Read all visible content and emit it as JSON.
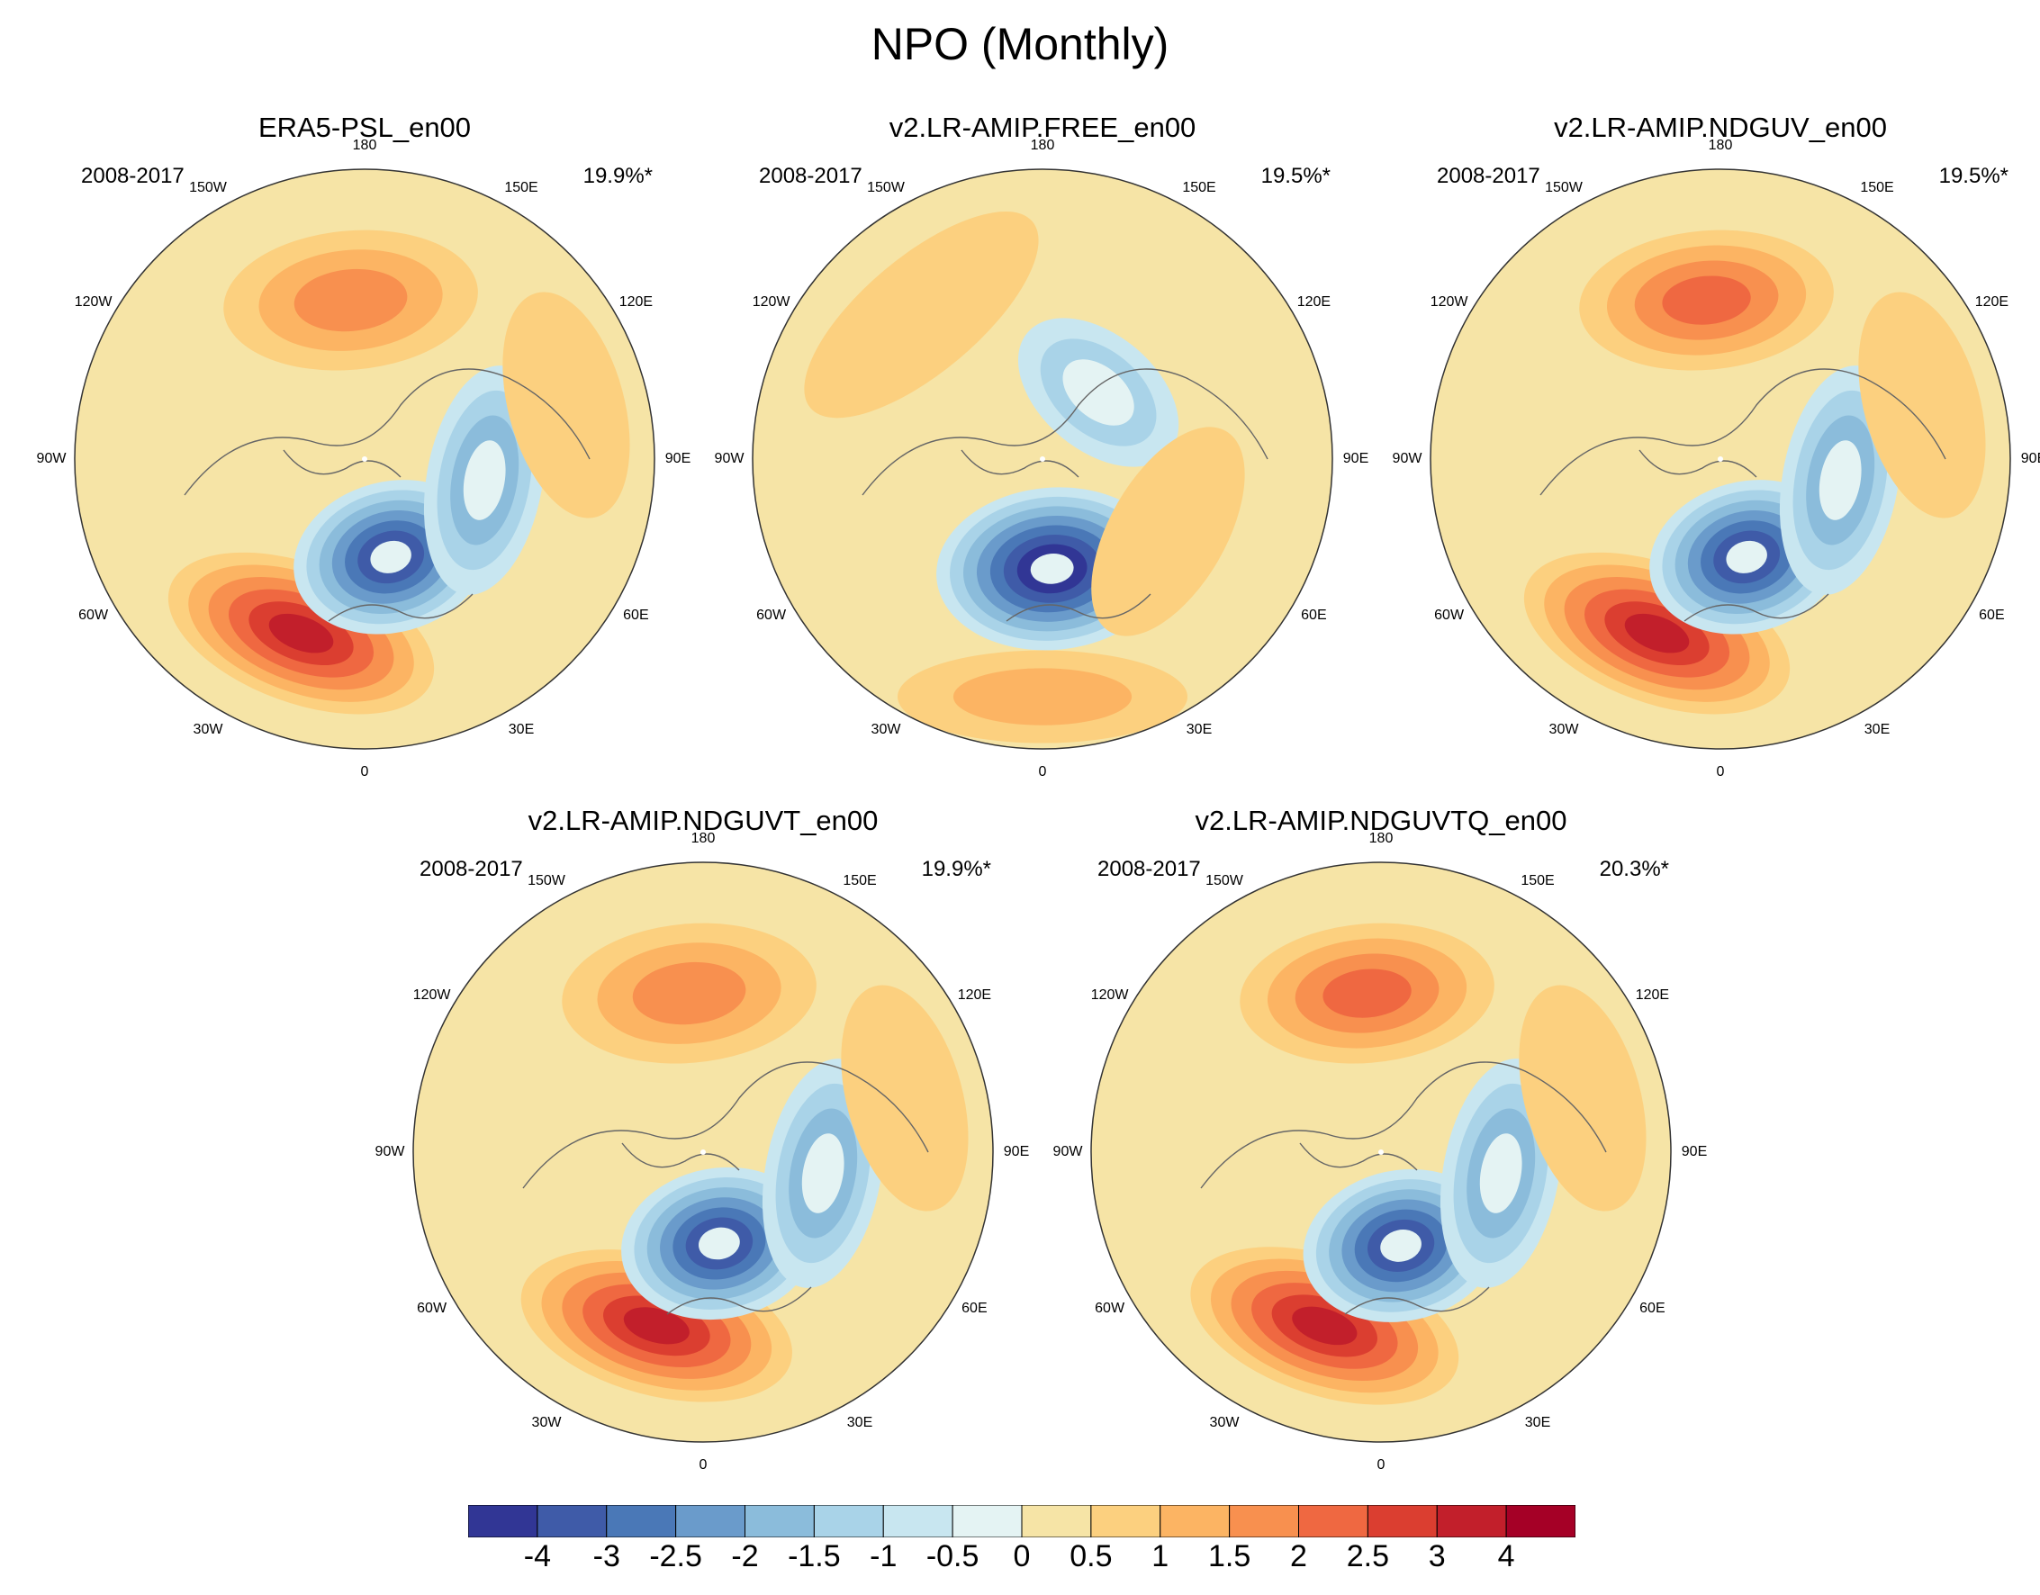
{
  "title": "NPO (Monthly)",
  "panels": [
    {
      "title": "ERA5-PSL_en00",
      "period": "2008-2017",
      "percent": "19.9%*",
      "features": [
        {
          "kind": "high",
          "ang": 200,
          "r": 0.64,
          "val": 3.6,
          "sa": 0.24,
          "sb": 0.12
        },
        {
          "kind": "low",
          "ang": 165,
          "r": 0.35,
          "val": -3.0,
          "sa": 0.17,
          "sb": 0.13
        },
        {
          "kind": "low",
          "ang": 100,
          "r": 0.42,
          "val": -1.5,
          "sa": 0.2,
          "sb": 0.1
        },
        {
          "kind": "high",
          "ang": -5,
          "r": 0.55,
          "val": 1.7,
          "sa": 0.22,
          "sb": 0.12
        },
        {
          "kind": "high",
          "ang": 75,
          "r": 0.72,
          "val": 0.7,
          "sa": 0.2,
          "sb": 0.1
        }
      ]
    },
    {
      "title": "v2.LR-AMIP.FREE_en00",
      "period": "2008-2017",
      "percent": "19.5%*",
      "features": [
        {
          "kind": "low",
          "ang": 175,
          "r": 0.38,
          "val": -4.2,
          "sa": 0.2,
          "sb": 0.14
        },
        {
          "kind": "low",
          "ang": 40,
          "r": 0.3,
          "val": -1.3,
          "sa": 0.16,
          "sb": 0.1
        },
        {
          "kind": "high",
          "ang": 180,
          "r": 0.82,
          "val": 1.0,
          "sa": 0.25,
          "sb": 0.08
        },
        {
          "kind": "high",
          "ang": -40,
          "r": 0.65,
          "val": 0.8,
          "sa": 0.25,
          "sb": 0.1
        },
        {
          "kind": "high",
          "ang": 120,
          "r": 0.5,
          "val": 0.6,
          "sa": 0.2,
          "sb": 0.1
        }
      ]
    },
    {
      "title": "v2.LR-AMIP.NDGUV_en00",
      "period": "2008-2017",
      "percent": "19.5%*",
      "features": [
        {
          "kind": "high",
          "ang": 200,
          "r": 0.64,
          "val": 3.8,
          "sa": 0.24,
          "sb": 0.12
        },
        {
          "kind": "low",
          "ang": 165,
          "r": 0.35,
          "val": -3.2,
          "sa": 0.17,
          "sb": 0.13
        },
        {
          "kind": "low",
          "ang": 100,
          "r": 0.42,
          "val": -1.5,
          "sa": 0.2,
          "sb": 0.1
        },
        {
          "kind": "high",
          "ang": -5,
          "r": 0.55,
          "val": 2.0,
          "sa": 0.22,
          "sb": 0.12
        },
        {
          "kind": "high",
          "ang": 75,
          "r": 0.72,
          "val": 0.8,
          "sa": 0.2,
          "sb": 0.1
        }
      ]
    },
    {
      "title": "v2.LR-AMIP.NDGUVT_en00",
      "period": "2008-2017",
      "percent": "19.9%*",
      "features": [
        {
          "kind": "high",
          "ang": 195,
          "r": 0.62,
          "val": 3.9,
          "sa": 0.24,
          "sb": 0.12
        },
        {
          "kind": "low",
          "ang": 170,
          "r": 0.32,
          "val": -3.3,
          "sa": 0.17,
          "sb": 0.13
        },
        {
          "kind": "low",
          "ang": 100,
          "r": 0.42,
          "val": -1.5,
          "sa": 0.2,
          "sb": 0.1
        },
        {
          "kind": "high",
          "ang": -5,
          "r": 0.55,
          "val": 1.9,
          "sa": 0.22,
          "sb": 0.12
        },
        {
          "kind": "high",
          "ang": 75,
          "r": 0.72,
          "val": 0.7,
          "sa": 0.2,
          "sb": 0.1
        }
      ]
    },
    {
      "title": "v2.LR-AMIP.NDGUVTQ_en00",
      "period": "2008-2017",
      "percent": "20.3%*",
      "features": [
        {
          "kind": "high",
          "ang": 198,
          "r": 0.63,
          "val": 3.7,
          "sa": 0.24,
          "sb": 0.12
        },
        {
          "kind": "low",
          "ang": 168,
          "r": 0.33,
          "val": -3.1,
          "sa": 0.17,
          "sb": 0.13
        },
        {
          "kind": "low",
          "ang": 100,
          "r": 0.42,
          "val": -1.5,
          "sa": 0.2,
          "sb": 0.1
        },
        {
          "kind": "high",
          "ang": -5,
          "r": 0.55,
          "val": 2.0,
          "sa": 0.22,
          "sb": 0.12
        },
        {
          "kind": "high",
          "ang": 75,
          "r": 0.72,
          "val": 0.7,
          "sa": 0.2,
          "sb": 0.1
        }
      ]
    }
  ],
  "lon_labels": [
    "180",
    "150E",
    "120E",
    "90E",
    "60E",
    "30E",
    "0",
    "30W",
    "60W",
    "90W",
    "120W",
    "150W"
  ],
  "colorbar": {
    "labels": [
      "-4",
      "-3",
      "-2.5",
      "-2",
      "-1.5",
      "-1",
      "-0.5",
      "0",
      "0.5",
      "1",
      "1.5",
      "2",
      "2.5",
      "3",
      "4"
    ],
    "colors": [
      "#313695",
      "#3f5ba8",
      "#4a78b7",
      "#6a9bcb",
      "#8bbcdb",
      "#a9d3e8",
      "#c8e6f0",
      "#e4f3f3",
      "#f6e4a6",
      "#fcd07f",
      "#fcb463",
      "#f8904f",
      "#ef6841",
      "#db3e30",
      "#c21f2b",
      "#a50026"
    ]
  }
}
